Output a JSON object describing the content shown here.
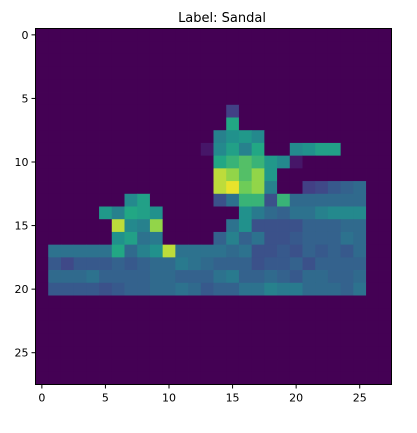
{
  "chart_data": {
    "type": "heatmap",
    "title": "Label: Sandal",
    "colormap": "viridis",
    "vmin": 0,
    "vmax": 255,
    "rows": 28,
    "cols": 28,
    "x_ticks": [
      0,
      5,
      10,
      15,
      20,
      25
    ],
    "y_ticks": [
      0,
      5,
      10,
      15,
      20,
      25
    ],
    "grid": false,
    "values": [
      [
        0,
        0,
        0,
        0,
        0,
        0,
        0,
        0,
        0,
        0,
        0,
        0,
        0,
        0,
        0,
        0,
        0,
        0,
        0,
        0,
        0,
        0,
        0,
        0,
        0,
        0,
        0,
        0
      ],
      [
        0,
        0,
        0,
        0,
        0,
        0,
        0,
        0,
        0,
        0,
        0,
        0,
        0,
        0,
        0,
        0,
        0,
        0,
        0,
        0,
        0,
        0,
        0,
        0,
        0,
        0,
        0,
        0
      ],
      [
        0,
        0,
        0,
        0,
        0,
        0,
        0,
        0,
        0,
        0,
        0,
        0,
        0,
        0,
        0,
        0,
        0,
        0,
        0,
        0,
        0,
        0,
        0,
        0,
        0,
        0,
        0,
        0
      ],
      [
        0,
        0,
        0,
        0,
        0,
        0,
        0,
        0,
        0,
        0,
        0,
        0,
        0,
        0,
        0,
        0,
        0,
        0,
        0,
        0,
        0,
        0,
        0,
        0,
        0,
        0,
        0,
        0
      ],
      [
        0,
        0,
        0,
        0,
        0,
        0,
        0,
        0,
        0,
        0,
        0,
        0,
        0,
        0,
        0,
        0,
        0,
        0,
        0,
        0,
        0,
        0,
        0,
        0,
        0,
        0,
        0,
        0
      ],
      [
        0,
        0,
        0,
        0,
        0,
        0,
        0,
        0,
        0,
        0,
        0,
        0,
        0,
        0,
        0,
        0,
        0,
        0,
        0,
        0,
        0,
        0,
        0,
        0,
        0,
        0,
        0,
        0
      ],
      [
        0,
        0,
        0,
        0,
        0,
        0,
        0,
        0,
        0,
        0,
        0,
        0,
        0,
        0,
        0,
        60,
        0,
        0,
        0,
        0,
        0,
        0,
        0,
        0,
        0,
        0,
        0,
        0
      ],
      [
        0,
        0,
        0,
        0,
        0,
        0,
        0,
        0,
        0,
        0,
        0,
        0,
        0,
        0,
        0,
        190,
        0,
        0,
        0,
        0,
        0,
        0,
        0,
        0,
        0,
        0,
        0,
        0
      ],
      [
        0,
        0,
        0,
        0,
        0,
        0,
        0,
        0,
        0,
        0,
        0,
        0,
        0,
        0,
        140,
        160,
        170,
        150,
        0,
        0,
        0,
        0,
        0,
        0,
        0,
        0,
        0,
        0
      ],
      [
        0,
        0,
        0,
        0,
        0,
        0,
        0,
        0,
        0,
        0,
        0,
        0,
        0,
        20,
        150,
        180,
        140,
        190,
        0,
        0,
        150,
        160,
        180,
        180,
        0,
        0,
        0,
        0
      ],
      [
        0,
        0,
        0,
        0,
        0,
        0,
        0,
        0,
        0,
        0,
        0,
        0,
        0,
        0,
        190,
        200,
        210,
        200,
        170,
        150,
        20,
        0,
        0,
        0,
        0,
        0,
        0,
        0
      ],
      [
        0,
        0,
        0,
        0,
        0,
        0,
        0,
        0,
        0,
        0,
        0,
        0,
        0,
        0,
        240,
        230,
        210,
        230,
        170,
        0,
        0,
        0,
        0,
        0,
        0,
        0,
        0,
        0
      ],
      [
        0,
        0,
        0,
        0,
        0,
        0,
        0,
        0,
        0,
        0,
        0,
        0,
        0,
        0,
        240,
        250,
        220,
        230,
        140,
        0,
        0,
        60,
        70,
        90,
        100,
        110,
        0,
        0
      ],
      [
        0,
        0,
        0,
        0,
        0,
        0,
        0,
        150,
        180,
        0,
        0,
        0,
        0,
        0,
        80,
        120,
        200,
        200,
        80,
        200,
        110,
        110,
        110,
        110,
        110,
        110,
        0,
        0
      ],
      [
        0,
        0,
        0,
        0,
        0,
        170,
        140,
        190,
        180,
        160,
        0,
        0,
        0,
        0,
        0,
        0,
        160,
        130,
        110,
        100,
        120,
        120,
        140,
        150,
        150,
        150,
        0,
        0
      ],
      [
        0,
        0,
        0,
        0,
        0,
        0,
        240,
        150,
        140,
        230,
        0,
        0,
        0,
        0,
        0,
        120,
        160,
        80,
        80,
        80,
        80,
        100,
        100,
        100,
        110,
        110,
        0,
        0
      ],
      [
        0,
        0,
        0,
        0,
        0,
        0,
        160,
        180,
        120,
        130,
        0,
        0,
        0,
        0,
        100,
        140,
        100,
        120,
        80,
        80,
        90,
        100,
        100,
        100,
        120,
        110,
        0,
        0
      ],
      [
        0,
        120,
        120,
        120,
        120,
        120,
        190,
        110,
        140,
        160,
        240,
        120,
        120,
        120,
        120,
        110,
        120,
        80,
        80,
        90,
        80,
        100,
        90,
        100,
        90,
        110,
        0,
        0
      ],
      [
        0,
        90,
        70,
        90,
        90,
        90,
        100,
        90,
        100,
        110,
        110,
        130,
        120,
        110,
        100,
        100,
        100,
        80,
        90,
        90,
        100,
        80,
        100,
        100,
        100,
        100,
        0,
        0
      ],
      [
        0,
        110,
        110,
        110,
        120,
        100,
        100,
        100,
        100,
        110,
        110,
        100,
        100,
        100,
        120,
        130,
        100,
        100,
        110,
        100,
        90,
        110,
        110,
        100,
        100,
        110,
        0,
        0
      ],
      [
        0,
        90,
        90,
        90,
        90,
        80,
        90,
        100,
        100,
        110,
        110,
        120,
        110,
        90,
        100,
        100,
        120,
        120,
        140,
        130,
        130,
        110,
        110,
        110,
        100,
        120,
        0,
        0
      ],
      [
        0,
        0,
        0,
        0,
        0,
        0,
        0,
        0,
        0,
        0,
        0,
        0,
        0,
        0,
        0,
        0,
        0,
        0,
        0,
        0,
        0,
        0,
        0,
        0,
        0,
        0,
        0,
        0
      ],
      [
        0,
        0,
        0,
        0,
        0,
        0,
        0,
        0,
        0,
        0,
        0,
        0,
        0,
        0,
        0,
        0,
        0,
        0,
        0,
        0,
        0,
        0,
        0,
        0,
        0,
        0,
        0,
        0
      ],
      [
        0,
        0,
        0,
        0,
        0,
        0,
        0,
        0,
        0,
        0,
        0,
        0,
        0,
        0,
        0,
        0,
        0,
        0,
        0,
        0,
        0,
        0,
        0,
        0,
        0,
        0,
        0,
        0
      ],
      [
        0,
        0,
        0,
        0,
        0,
        0,
        0,
        0,
        0,
        0,
        0,
        0,
        0,
        0,
        0,
        0,
        0,
        0,
        0,
        0,
        0,
        0,
        0,
        0,
        0,
        0,
        0,
        0
      ],
      [
        0,
        0,
        0,
        0,
        0,
        0,
        0,
        0,
        0,
        0,
        0,
        0,
        0,
        0,
        0,
        0,
        0,
        0,
        0,
        0,
        0,
        0,
        0,
        0,
        0,
        0,
        0,
        0
      ],
      [
        0,
        0,
        0,
        0,
        0,
        0,
        0,
        0,
        0,
        0,
        0,
        0,
        0,
        0,
        0,
        0,
        0,
        0,
        0,
        0,
        0,
        0,
        0,
        0,
        0,
        0,
        0,
        0
      ],
      [
        0,
        0,
        0,
        0,
        0,
        0,
        0,
        0,
        0,
        0,
        0,
        0,
        0,
        0,
        0,
        0,
        0,
        0,
        0,
        0,
        0,
        0,
        0,
        0,
        0,
        0,
        0,
        0
      ]
    ]
  }
}
